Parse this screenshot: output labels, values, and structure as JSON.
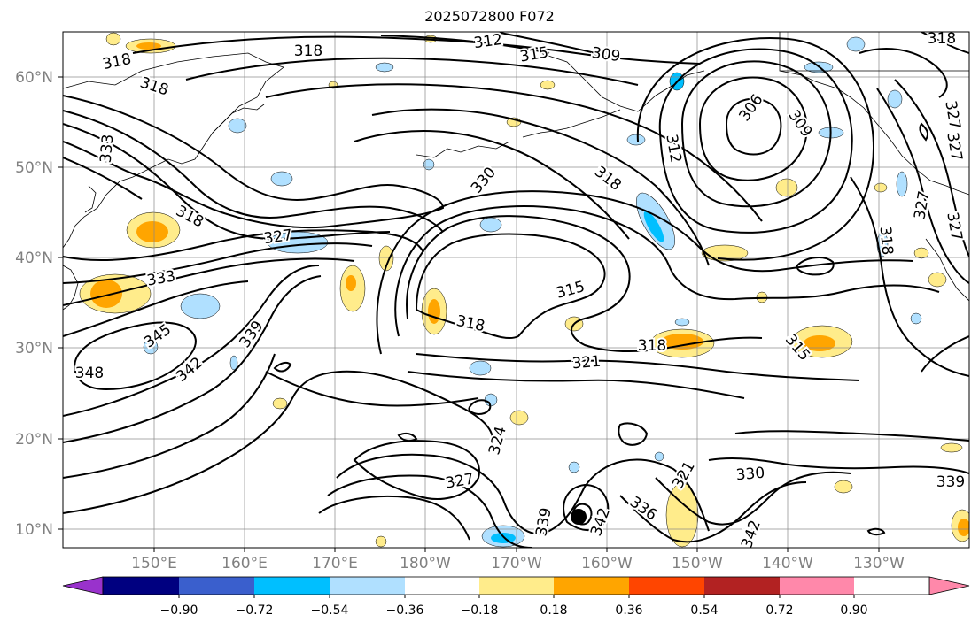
{
  "title": "2025072800 F072",
  "map": {
    "lat_labels": [
      "60°N",
      "50°N",
      "40°N",
      "30°N",
      "20°N",
      "10°N"
    ],
    "lon_labels": [
      "150°E",
      "160°E",
      "170°E",
      "180°W",
      "170°W",
      "160°W",
      "150°W",
      "140°W",
      "130°W"
    ],
    "contour_labels": [
      {
        "text": "318",
        "rot": -12
      },
      {
        "text": "318",
        "rot": 0
      },
      {
        "text": "318",
        "rot": 18
      },
      {
        "text": "312",
        "rot": -8
      },
      {
        "text": "315",
        "rot": -10
      },
      {
        "text": "309",
        "rot": 8
      },
      {
        "text": "318",
        "rot": 0
      },
      {
        "text": "306",
        "rot": -55
      },
      {
        "text": "309",
        "rot": 55
      },
      {
        "text": "312",
        "rot": 80
      },
      {
        "text": "333",
        "rot": -85
      },
      {
        "text": "330",
        "rot": -50
      },
      {
        "text": "318",
        "rot": 38
      },
      {
        "text": "318",
        "rot": 28
      },
      {
        "text": "327",
        "rot": -8
      },
      {
        "text": "333",
        "rot": -10
      },
      {
        "text": "315",
        "rot": -15
      },
      {
        "text": "318",
        "rot": 12
      },
      {
        "text": "345",
        "rot": -35
      },
      {
        "text": "339",
        "rot": -55
      },
      {
        "text": "318",
        "rot": 0
      },
      {
        "text": "315",
        "rot": 50
      },
      {
        "text": "321",
        "rot": -5
      },
      {
        "text": "348",
        "rot": 0
      },
      {
        "text": "342",
        "rot": -40
      },
      {
        "text": "324",
        "rot": -75
      },
      {
        "text": "327",
        "rot": -10
      },
      {
        "text": "321",
        "rot": -60
      },
      {
        "text": "330",
        "rot": -5
      },
      {
        "text": "339",
        "rot": -80
      },
      {
        "text": "342",
        "rot": -70
      },
      {
        "text": "336",
        "rot": 35
      },
      {
        "text": "342",
        "rot": -70
      },
      {
        "text": "339",
        "rot": 0
      },
      {
        "text": "327",
        "rot": 80
      },
      {
        "text": "327",
        "rot": 80
      },
      {
        "text": "327",
        "rot": -80
      },
      {
        "text": "327",
        "rot": 80
      },
      {
        "text": "318",
        "rot": 85
      },
      {
        "text": "318",
        "rot": 0
      }
    ]
  },
  "colorbar": {
    "ticks": [
      "−0.90",
      "−0.72",
      "−0.54",
      "−0.36",
      "−0.18",
      "0.18",
      "0.36",
      "0.54",
      "0.72",
      "0.90"
    ],
    "colors": [
      "#9932CC",
      "#000080",
      "#3A5FCD",
      "#00BFFF",
      "#B0E0FF",
      "#FFFFFF",
      "#FFEC8B",
      "#FFA500",
      "#FF4500",
      "#B22222",
      "#FF88AA"
    ]
  }
}
